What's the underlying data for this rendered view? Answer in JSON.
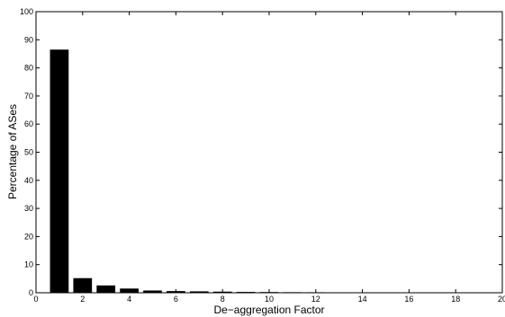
{
  "chart_data": {
    "type": "bar",
    "title": "",
    "xlabel": "De−aggregation Factor",
    "ylabel": "Percentage of ASes",
    "xlim": [
      0,
      20
    ],
    "ylim": [
      0,
      100
    ],
    "xticks": [
      "0",
      "2",
      "4",
      "6",
      "8",
      "10",
      "12",
      "14",
      "16",
      "18",
      "20"
    ],
    "yticks": [
      "0",
      "10",
      "20",
      "30",
      "40",
      "50",
      "60",
      "70",
      "80",
      "90",
      "100"
    ],
    "grid": false,
    "legend": "none",
    "bar_color": "#000000",
    "bar_width": 0.8,
    "x": [
      1,
      2,
      3,
      4,
      5,
      6,
      7,
      8,
      9,
      10,
      11,
      12,
      13,
      14,
      15,
      16,
      17,
      18,
      19
    ],
    "values": [
      86.5,
      5.2,
      2.6,
      1.5,
      0.8,
      0.6,
      0.5,
      0.4,
      0.3,
      0.25,
      0.2,
      0.18,
      0.15,
      0.12,
      0.1,
      0.08,
      0.06,
      0.05,
      0.04
    ]
  }
}
